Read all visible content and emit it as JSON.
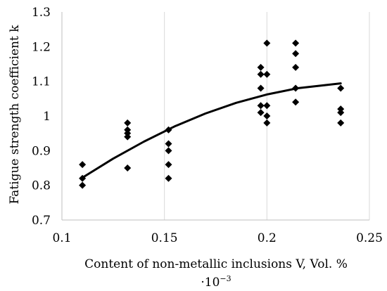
{
  "chart_data": {
    "type": "scatter",
    "title": "",
    "xlabel": "Content of non-metallic inclusions V, Vol. %",
    "xlabel_line2": "·10",
    "xlabel_exponent": "−3",
    "ylabel": "Fatigue strength coefficient k",
    "xlim": [
      0.1,
      0.25
    ],
    "ylim": [
      0.7,
      1.3
    ],
    "x_ticks": [
      0.1,
      0.15,
      0.2,
      0.25
    ],
    "x_tick_labels": [
      "0.1",
      "0.15",
      "0.2",
      "0.25"
    ],
    "y_ticks": [
      0.7,
      0.8,
      0.9,
      1.0,
      1.1,
      1.2,
      1.3
    ],
    "y_tick_labels": [
      "0.7",
      "0.8",
      "0.9",
      "1",
      "1.1",
      "1.2",
      "1.3"
    ],
    "grid": "vertical",
    "legend": "none",
    "marker": "diamond",
    "colors": {
      "points": "#000000",
      "trend": "#000000",
      "grid": "#d9d9d9",
      "axis": "#bfbfbf"
    },
    "points": [
      {
        "x": 0.11,
        "y": 0.86
      },
      {
        "x": 0.11,
        "y": 0.82
      },
      {
        "x": 0.11,
        "y": 0.8
      },
      {
        "x": 0.132,
        "y": 0.98
      },
      {
        "x": 0.132,
        "y": 0.96
      },
      {
        "x": 0.132,
        "y": 0.95
      },
      {
        "x": 0.132,
        "y": 0.94
      },
      {
        "x": 0.132,
        "y": 0.85
      },
      {
        "x": 0.152,
        "y": 0.96
      },
      {
        "x": 0.152,
        "y": 0.92
      },
      {
        "x": 0.152,
        "y": 0.9
      },
      {
        "x": 0.152,
        "y": 0.86
      },
      {
        "x": 0.152,
        "y": 0.82
      },
      {
        "x": 0.197,
        "y": 1.14
      },
      {
        "x": 0.197,
        "y": 1.12
      },
      {
        "x": 0.197,
        "y": 1.08
      },
      {
        "x": 0.197,
        "y": 1.03
      },
      {
        "x": 0.197,
        "y": 1.01
      },
      {
        "x": 0.2,
        "y": 1.21
      },
      {
        "x": 0.2,
        "y": 1.12
      },
      {
        "x": 0.2,
        "y": 1.03
      },
      {
        "x": 0.2,
        "y": 1.0
      },
      {
        "x": 0.2,
        "y": 0.98
      },
      {
        "x": 0.214,
        "y": 1.21
      },
      {
        "x": 0.214,
        "y": 1.18
      },
      {
        "x": 0.214,
        "y": 1.14
      },
      {
        "x": 0.214,
        "y": 1.08
      },
      {
        "x": 0.214,
        "y": 1.04
      },
      {
        "x": 0.236,
        "y": 1.08
      },
      {
        "x": 0.236,
        "y": 1.02
      },
      {
        "x": 0.236,
        "y": 1.01
      },
      {
        "x": 0.236,
        "y": 0.98
      }
    ],
    "trendline": {
      "type": "polynomial",
      "points": [
        {
          "x": 0.11,
          "y": 0.822
        },
        {
          "x": 0.125,
          "y": 0.877
        },
        {
          "x": 0.14,
          "y": 0.926
        },
        {
          "x": 0.155,
          "y": 0.97
        },
        {
          "x": 0.17,
          "y": 1.007
        },
        {
          "x": 0.185,
          "y": 1.038
        },
        {
          "x": 0.2,
          "y": 1.062
        },
        {
          "x": 0.215,
          "y": 1.08
        },
        {
          "x": 0.236,
          "y": 1.094
        }
      ]
    }
  }
}
